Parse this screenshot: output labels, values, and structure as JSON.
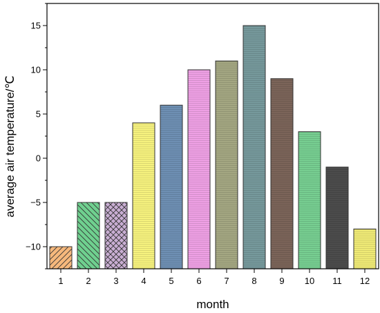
{
  "chart_data": {
    "type": "bar",
    "xlabel": "month",
    "ylabel": "average air temperature/℃",
    "categories": [
      "1",
      "2",
      "3",
      "4",
      "5",
      "6",
      "7",
      "8",
      "9",
      "10",
      "11",
      "12"
    ],
    "values": [
      -10,
      -5,
      -5,
      4,
      6,
      10,
      11,
      15,
      9,
      3,
      -1,
      -8
    ],
    "ylim": [
      -12.5,
      17.5
    ],
    "yticks": [
      -10,
      -5,
      0,
      5,
      10,
      15
    ],
    "grid": false,
    "legend": false,
    "bar_colors": [
      "#f6b87c",
      "#6fd08f",
      "#c9aed3",
      "#f6f27e",
      "#6e8fb3",
      "#eea0e4",
      "#a4a782",
      "#76999c",
      "#7b6459",
      "#77ce91",
      "#4c4c4c",
      "#efea76"
    ],
    "bar_patterns": [
      "diag-up",
      "diag-down",
      "crosshatch",
      "hlines",
      "hlines",
      "hlines",
      "hlines",
      "hlines",
      "hlines",
      "hlines",
      "hlines",
      "hlines"
    ]
  }
}
